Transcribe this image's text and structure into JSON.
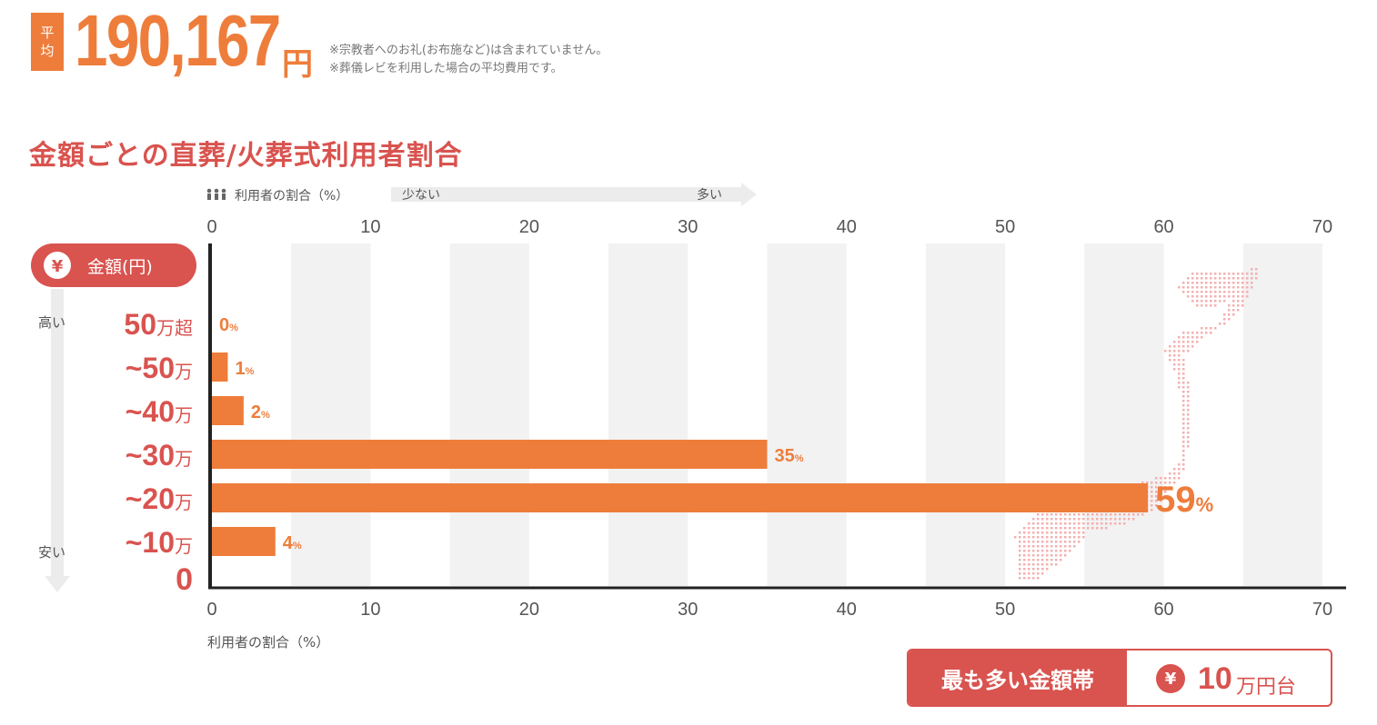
{
  "header": {
    "badge_line1": "平",
    "badge_line2": "均",
    "average_value": "190,167",
    "average_unit": "円",
    "note1": "※宗教者へのお礼(お布施など)は含まれていません。",
    "note2": "※葬儀レビを利用した場合の平均費用です。"
  },
  "section_title": "金額ごとの直葬/火葬式利用者割合",
  "chart_data": {
    "type": "bar",
    "orientation": "horizontal",
    "title": "金額ごとの直葬/火葬式利用者割合",
    "top_axis_label": "利用者の割合（%）",
    "top_arrow_low": "少ない",
    "top_arrow_high": "多い",
    "xlabel": "利用者の割合（%）",
    "ylabel": "金額(円)",
    "y_high_label": "高い",
    "y_low_label": "安い",
    "y_zero_label": "0",
    "xlim": [
      0,
      70
    ],
    "xticks": [
      "0",
      "10",
      "20",
      "30",
      "40",
      "50",
      "60",
      "70"
    ],
    "categories": [
      {
        "num": "50",
        "unit": "万超"
      },
      {
        "num": "~50",
        "unit": "万"
      },
      {
        "num": "~40",
        "unit": "万"
      },
      {
        "num": "~30",
        "unit": "万"
      },
      {
        "num": "~20",
        "unit": "万"
      },
      {
        "num": "~10",
        "unit": "万"
      }
    ],
    "values": [
      0,
      1,
      2,
      35,
      59,
      4
    ],
    "value_labels": [
      "0",
      "1",
      "2",
      "35",
      "59",
      "4"
    ],
    "value_suffix": "%",
    "highlight_index": 4,
    "grid_bands": true,
    "bar_color": "#ee7d3b",
    "accent_color": "#d9534f"
  },
  "highlight": {
    "label": "最も多い金額帯",
    "yen": "¥",
    "value": "10",
    "unit": "万円台"
  },
  "colors": {
    "orange": "#ee7d3b",
    "red": "#d9534f",
    "band": "#f2f2f2",
    "map_dots": "#f3b0b0"
  },
  "icons": {
    "people": "people-icon",
    "yen": "yen-icon"
  }
}
